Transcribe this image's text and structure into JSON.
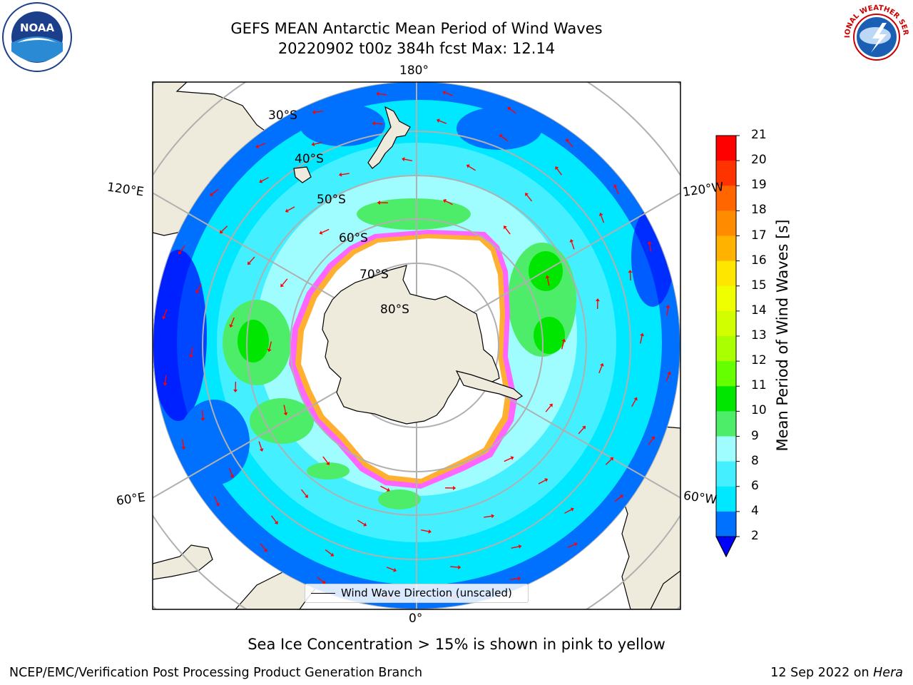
{
  "header": {
    "title_line1": "GEFS MEAN Antarctic Mean Period of Wind Waves",
    "title_line2": "20220902 t00z 384h fcst   Max: 12.14"
  },
  "map": {
    "projection": "south-polar-stereographic",
    "longitude_labels": {
      "top": "180°",
      "bottom": "0°",
      "left_upper": "120°E",
      "left_lower": "60°E",
      "right_upper": "120°W",
      "right_lower": "60°W"
    },
    "latitude_labels": [
      "30°S",
      "40°S",
      "50°S",
      "60°S",
      "70°S",
      "80°S"
    ],
    "legend_label": "Wind Wave Direction (unscaled)",
    "arrow_color": "#ff0000",
    "land_color": "#efebdc",
    "sea_ice_colors": [
      "#ff66ff",
      "#ffb030",
      "#ffe060"
    ]
  },
  "colorbar": {
    "label": "Mean Period of Wind Waves [s]",
    "ticks": [
      "21",
      "20",
      "19",
      "18",
      "17",
      "16",
      "15",
      "14",
      "13",
      "12",
      "11",
      "10",
      "9",
      "8",
      "6",
      "4",
      "2"
    ],
    "bins": [
      {
        "lo": 19,
        "hi": 21,
        "color": "#ff0000"
      },
      {
        "lo": 18,
        "hi": 19,
        "color": "#ff3300"
      },
      {
        "lo": 17,
        "hi": 18,
        "color": "#ff6600"
      },
      {
        "lo": 16,
        "hi": 17,
        "color": "#ff8c00"
      },
      {
        "lo": 15,
        "hi": 16,
        "color": "#ffb300"
      },
      {
        "lo": 14,
        "hi": 15,
        "color": "#ffe600"
      },
      {
        "lo": 13,
        "hi": 14,
        "color": "#f0ff00"
      },
      {
        "lo": 12,
        "hi": 13,
        "color": "#d2ff00"
      },
      {
        "lo": 11,
        "hi": 12,
        "color": "#aaff00"
      },
      {
        "lo": 10,
        "hi": 11,
        "color": "#66ff00"
      },
      {
        "lo": 9,
        "hi": 10,
        "color": "#00e600"
      },
      {
        "lo": 8,
        "hi": 9,
        "color": "#4ded6a"
      },
      {
        "lo": 6,
        "hi": 8,
        "color": "#9ffcff"
      },
      {
        "lo": 4,
        "hi": 6,
        "color": "#44f0ff"
      },
      {
        "lo": 2,
        "hi": 4,
        "color": "#00e8ff"
      },
      {
        "lo": 0,
        "hi": 2,
        "color": "#0070ff"
      }
    ],
    "extend_color": "#0000ff"
  },
  "footer": {
    "caption": "Sea Ice Concentration > 15% is shown in pink to yellow",
    "credit": "NCEP/EMC/Verification Post Processing Product Generation Branch",
    "date": "12 Sep 2022 on ",
    "machine": "Hera"
  },
  "logos": {
    "left": "NOAA",
    "right": "NATIONAL WEATHER SERVICE"
  }
}
